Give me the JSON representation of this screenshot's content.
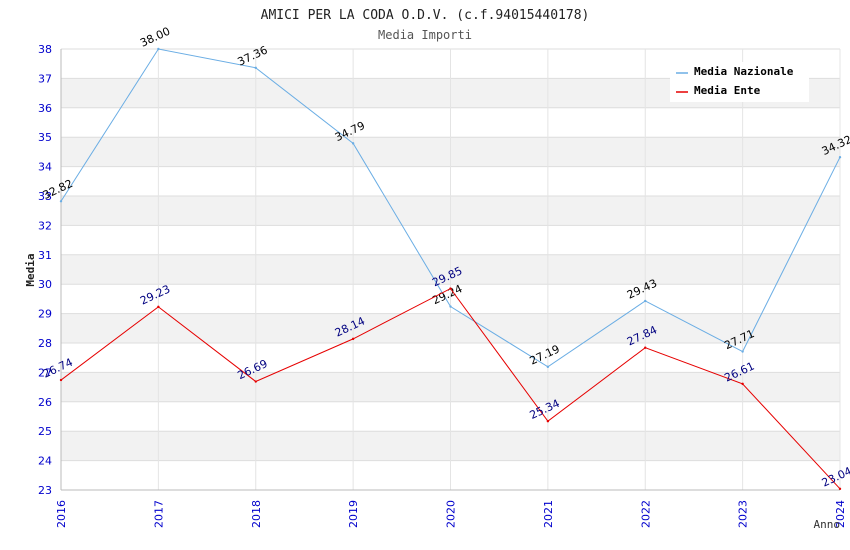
{
  "chart_data": {
    "type": "line",
    "title": "AMICI PER LA CODA O.D.V. (c.f.94015440178)",
    "subtitle": "Media Importi",
    "xlabel": "Anno",
    "ylabel": "Media",
    "categories": [
      "2016",
      "2017",
      "2018",
      "2019",
      "2020",
      "2021",
      "2022",
      "2023",
      "2024"
    ],
    "ylim": [
      23,
      38
    ],
    "yticks": [
      "23",
      "24",
      "25",
      "26",
      "27",
      "28",
      "29",
      "30",
      "31",
      "32",
      "33",
      "34",
      "35",
      "36",
      "37",
      "38"
    ],
    "grid": true,
    "legend_position": "top-right",
    "series": [
      {
        "name": "Media Nazionale",
        "color": "#6aade4",
        "label_color": "#000000",
        "values": [
          32.82,
          38.0,
          37.36,
          34.79,
          29.24,
          27.19,
          29.43,
          27.71,
          34.32
        ],
        "labels": [
          "32.82",
          "38.00",
          "37.36",
          "34.79",
          "29.24",
          "27.19",
          "29.43",
          "27.71",
          "34.32"
        ]
      },
      {
        "name": "Media Ente",
        "color": "#e60000",
        "label_color": "#000080",
        "values": [
          26.74,
          29.23,
          26.69,
          28.14,
          29.85,
          25.34,
          27.84,
          26.61,
          23.04
        ],
        "labels": [
          "26.74",
          "29.23",
          "26.69",
          "28.14",
          "29.85",
          "25.34",
          "27.84",
          "26.61",
          "23.04"
        ]
      }
    ]
  }
}
